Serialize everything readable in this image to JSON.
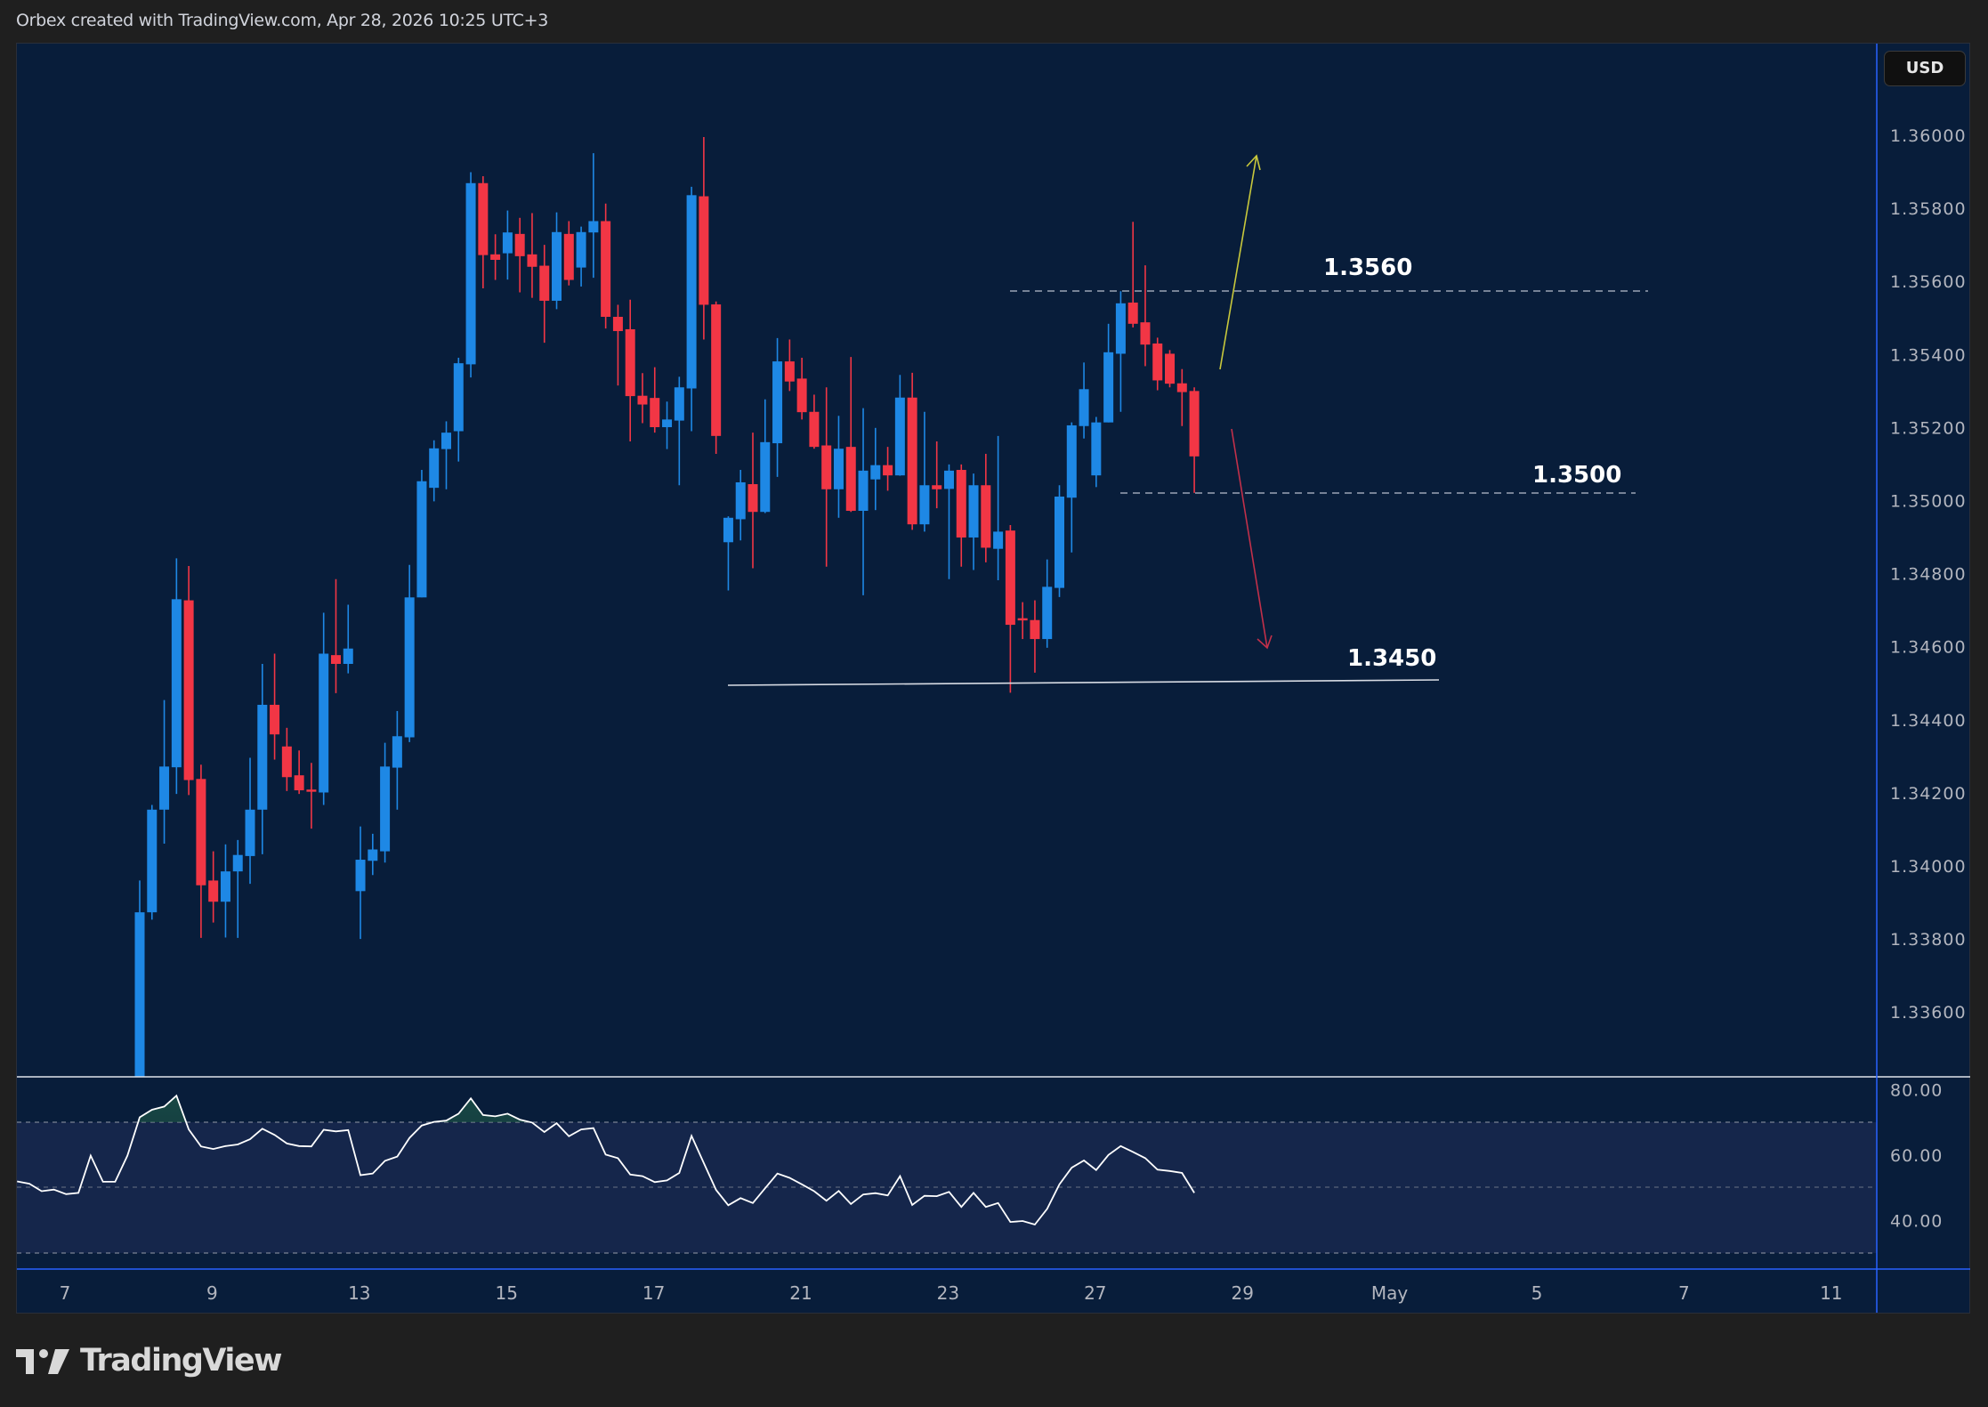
{
  "header": {
    "title": "Orbex created with TradingView.com, Apr 28, 2026 10:25 UTC+3"
  },
  "currency_button": {
    "label": "USD"
  },
  "footer": {
    "logo_text": "TradingView"
  },
  "colors": {
    "background": "#081d3a",
    "up": "#1e88e5",
    "down": "#f23645",
    "rsi_line": "#ffffff",
    "rsi_band": "#15264b",
    "arrow_up": "#c8c83c",
    "arrow_down": "#c2304a"
  },
  "chart_data": {
    "type": "candlestick",
    "title": "",
    "price_axis": {
      "ticks": [
        "1.36000",
        "1.35800",
        "1.35600",
        "1.35400",
        "1.35200",
        "1.35000",
        "1.34800",
        "1.34600",
        "1.34400",
        "1.34200",
        "1.34000",
        "1.33800",
        "1.33600"
      ],
      "ylim": [
        1.3342,
        1.3612
      ]
    },
    "time_axis": {
      "ticks": [
        "7",
        "9",
        "13",
        "15",
        "17",
        "21",
        "23",
        "27",
        "29",
        "May",
        "5",
        "7",
        "11"
      ]
    },
    "grid": false,
    "candles_ohlc": [
      [
        1.333,
        1.3396,
        1.3325,
        1.33873
      ],
      [
        1.33873,
        1.34167,
        1.33853,
        1.34154
      ],
      [
        1.34154,
        1.34454,
        1.34061,
        1.34272
      ],
      [
        1.3427,
        1.34842,
        1.34197,
        1.3473
      ],
      [
        1.34727,
        1.34821,
        1.34194,
        1.34235
      ],
      [
        1.34238,
        1.34277,
        1.33803,
        1.33947
      ],
      [
        1.3396,
        1.3404,
        1.33845,
        1.33902
      ],
      [
        1.33902,
        1.34059,
        1.33804,
        1.33985
      ],
      [
        1.33985,
        1.34071,
        1.33803,
        1.3403
      ],
      [
        1.34027,
        1.34296,
        1.33951,
        1.34154
      ],
      [
        1.34154,
        1.34553,
        1.34032,
        1.34441
      ],
      [
        1.34441,
        1.34581,
        1.34291,
        1.3436
      ],
      [
        1.34327,
        1.34378,
        1.34205,
        1.34243
      ],
      [
        1.34248,
        1.34316,
        1.34197,
        1.34207
      ],
      [
        1.34209,
        1.34282,
        1.34102,
        1.34203
      ],
      [
        1.34201,
        1.34693,
        1.34167,
        1.34581
      ],
      [
        1.34577,
        1.34785,
        1.34473,
        1.34553
      ],
      [
        1.34553,
        1.34715,
        1.34527,
        1.34595
      ],
      [
        1.33931,
        1.34108,
        1.338,
        1.34017
      ],
      [
        1.34014,
        1.34088,
        1.33975,
        1.34045
      ],
      [
        1.3404,
        1.34337,
        1.34009,
        1.34272
      ],
      [
        1.34269,
        1.34424,
        1.34154,
        1.34355
      ],
      [
        1.34352,
        1.34824,
        1.34339,
        1.34735
      ],
      [
        1.34735,
        1.35084,
        1.34735,
        1.35053
      ],
      [
        1.35035,
        1.35165,
        1.34998,
        1.35143
      ],
      [
        1.35141,
        1.35217,
        1.35031,
        1.35186
      ],
      [
        1.3519,
        1.35391,
        1.35107,
        1.35376
      ],
      [
        1.35373,
        1.35899,
        1.35337,
        1.35869
      ],
      [
        1.35869,
        1.35888,
        1.35581,
        1.35672
      ],
      [
        1.35674,
        1.35729,
        1.35604,
        1.35659
      ],
      [
        1.35677,
        1.35794,
        1.35605,
        1.35734
      ],
      [
        1.3573,
        1.35774,
        1.3557,
        1.35669
      ],
      [
        1.35674,
        1.35787,
        1.35555,
        1.3564
      ],
      [
        1.35643,
        1.357,
        1.35432,
        1.35547
      ],
      [
        1.35547,
        1.35789,
        1.35524,
        1.35735
      ],
      [
        1.3573,
        1.35765,
        1.35589,
        1.35604
      ],
      [
        1.35638,
        1.3575,
        1.35586,
        1.35735
      ],
      [
        1.35734,
        1.35951,
        1.3561,
        1.35765
      ],
      [
        1.35765,
        1.35813,
        1.35471,
        1.35503
      ],
      [
        1.35503,
        1.35536,
        1.35315,
        1.35464
      ],
      [
        1.35469,
        1.3555,
        1.35162,
        1.35286
      ],
      [
        1.35287,
        1.35349,
        1.35212,
        1.35263
      ],
      [
        1.35281,
        1.35365,
        1.35186,
        1.35201
      ],
      [
        1.35201,
        1.35271,
        1.35141,
        1.35222
      ],
      [
        1.35219,
        1.35339,
        1.35042,
        1.3531
      ],
      [
        1.35307,
        1.35859,
        1.3519,
        1.35836
      ],
      [
        1.35833,
        1.35995,
        1.35441,
        1.35536
      ],
      [
        1.35537,
        1.35545,
        1.35128,
        1.35177
      ],
      [
        1.34886,
        1.34957,
        1.34754,
        1.34953
      ],
      [
        1.34949,
        1.35084,
        1.34891,
        1.3505
      ],
      [
        1.35045,
        1.35186,
        1.34815,
        1.34969
      ],
      [
        1.34969,
        1.35277,
        1.34966,
        1.3516
      ],
      [
        1.35157,
        1.35445,
        1.35065,
        1.35381
      ],
      [
        1.35381,
        1.35441,
        1.353,
        1.35326
      ],
      [
        1.35334,
        1.35391,
        1.35222,
        1.35242
      ],
      [
        1.35243,
        1.3529,
        1.35142,
        1.35147
      ],
      [
        1.35151,
        1.3531,
        1.34819,
        1.35031
      ],
      [
        1.35031,
        1.35232,
        1.34953,
        1.35142
      ],
      [
        1.35147,
        1.35393,
        1.34969,
        1.34972
      ],
      [
        1.34972,
        1.35253,
        1.34741,
        1.35082
      ],
      [
        1.35058,
        1.35199,
        1.34974,
        1.35097
      ],
      [
        1.35097,
        1.35147,
        1.35027,
        1.35069
      ],
      [
        1.35069,
        1.35344,
        1.35068,
        1.35282
      ],
      [
        1.35282,
        1.3535,
        1.3492,
        1.34935
      ],
      [
        1.34935,
        1.35243,
        1.34915,
        1.35042
      ],
      [
        1.35042,
        1.35162,
        1.34979,
        1.35031
      ],
      [
        1.35032,
        1.35099,
        1.34785,
        1.35082
      ],
      [
        1.35084,
        1.35099,
        1.34819,
        1.34899
      ],
      [
        1.34899,
        1.35074,
        1.3481,
        1.35042
      ],
      [
        1.35042,
        1.35128,
        1.34831,
        1.34871
      ],
      [
        1.34868,
        1.35177,
        1.34782,
        1.34915
      ],
      [
        1.34918,
        1.34933,
        1.34474,
        1.3466
      ],
      [
        1.34678,
        1.34722,
        1.34621,
        1.34672
      ],
      [
        1.34673,
        1.34727,
        1.34529,
        1.34621
      ],
      [
        1.34621,
        1.34839,
        1.34597,
        1.34764
      ],
      [
        1.34761,
        1.35042,
        1.34736,
        1.35011
      ],
      [
        1.35008,
        1.35214,
        1.34858,
        1.35206
      ],
      [
        1.35204,
        1.35378,
        1.3517,
        1.35305
      ],
      [
        1.35069,
        1.35229,
        1.35037,
        1.35214
      ],
      [
        1.35214,
        1.35484,
        1.35214,
        1.35406
      ],
      [
        1.35402,
        1.35573,
        1.35243,
        1.3554
      ],
      [
        1.35542,
        1.35763,
        1.35474,
        1.35484
      ],
      [
        1.35488,
        1.35644,
        1.35368,
        1.35427
      ],
      [
        1.3543,
        1.35446,
        1.35302,
        1.35329
      ],
      [
        1.35402,
        1.35412,
        1.3531,
        1.3532
      ],
      [
        1.35321,
        1.3536,
        1.35204,
        1.35297
      ],
      [
        1.353,
        1.3531,
        1.35021,
        1.35121
      ]
    ],
    "rsi": {
      "axis_ticks": [
        "80.00",
        "60.00",
        "40.00"
      ],
      "levels": [
        70,
        50,
        30
      ],
      "ylim": [
        22,
        85
      ],
      "values": [
        51.9,
        51.2,
        48.9,
        49.4,
        48.0,
        48.4,
        59.8,
        51.8,
        51.8,
        59.8,
        71.5,
        73.8,
        74.8,
        78.1,
        67.8,
        62.6,
        61.8,
        62.7,
        63.2,
        64.8,
        68.0,
        66.1,
        63.5,
        62.7,
        62.6,
        67.7,
        67.2,
        67.6,
        53.8,
        54.3,
        58.2,
        59.5,
        65.2,
        69.0,
        70.1,
        70.5,
        72.6,
        77.3,
        72.2,
        71.8,
        72.6,
        70.8,
        69.9,
        67.0,
        69.7,
        65.7,
        67.8,
        68.2,
        60.1,
        59.0,
        54.0,
        53.5,
        51.7,
        52.2,
        54.5,
        65.8,
        57.5,
        49.3,
        44.6,
        46.8,
        45.3,
        49.8,
        54.3,
        53.0,
        51.0,
        48.9,
        46.0,
        49.0,
        45.0,
        47.9,
        48.3,
        47.6,
        53.5,
        44.7,
        47.5,
        47.4,
        48.7,
        44.1,
        48.4,
        44.1,
        45.3,
        39.5,
        39.8,
        38.7,
        43.5,
        51.0,
        56.1,
        58.3,
        55.4,
        60.0,
        62.7,
        60.9,
        59.0,
        55.5,
        55.1,
        54.5,
        48.4
      ]
    },
    "annotations": [
      {
        "label": "1.3560",
        "price": 1.3557,
        "style": "dashed"
      },
      {
        "label": "1.3500",
        "price": 1.3502,
        "style": "dashed"
      },
      {
        "label": "1.3450",
        "price": 1.345,
        "style": "solid"
      }
    ]
  }
}
